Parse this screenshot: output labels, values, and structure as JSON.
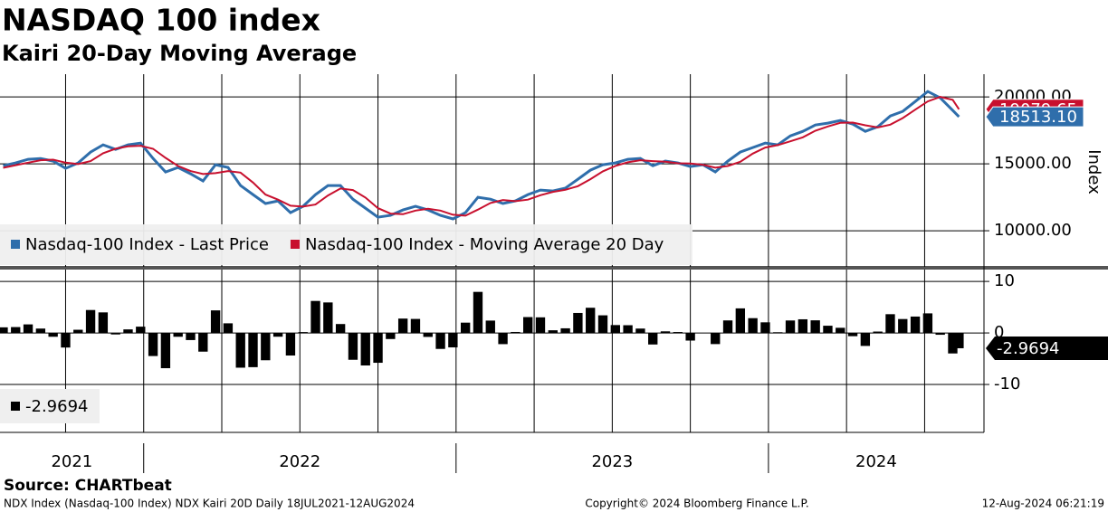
{
  "header": {
    "title": "NASDAQ 100 index",
    "subtitle": "Kairi 20-Day Moving Average"
  },
  "chart_data": [
    {
      "type": "line",
      "x": [
        2021.55,
        2021.59,
        2021.63,
        2021.67,
        2021.71,
        2021.75,
        2021.79,
        2021.83,
        2021.87,
        2021.91,
        2021.95,
        2021.99,
        2022.03,
        2022.07,
        2022.11,
        2022.15,
        2022.19,
        2022.23,
        2022.27,
        2022.31,
        2022.35,
        2022.39,
        2022.43,
        2022.47,
        2022.51,
        2022.55,
        2022.59,
        2022.63,
        2022.67,
        2022.71,
        2022.75,
        2022.79,
        2022.83,
        2022.87,
        2022.91,
        2022.95,
        2022.99,
        2023.03,
        2023.07,
        2023.11,
        2023.15,
        2023.19,
        2023.23,
        2023.27,
        2023.31,
        2023.35,
        2023.39,
        2023.43,
        2023.47,
        2023.51,
        2023.55,
        2023.59,
        2023.63,
        2023.67,
        2023.71,
        2023.75,
        2023.79,
        2023.83,
        2023.87,
        2023.91,
        2023.95,
        2023.99,
        2024.03,
        2024.07,
        2024.11,
        2024.15,
        2024.19,
        2024.23,
        2024.27,
        2024.31,
        2024.35,
        2024.39,
        2024.43,
        2024.47,
        2024.51,
        2024.55,
        2024.59,
        2024.61
      ],
      "series": [
        {
          "name": "Nasdaq-100 Index - Last Price",
          "color": "#2f6eab",
          "last_label": "18513.10",
          "values": [
            14860,
            15070,
            15340,
            15400,
            15200,
            14660,
            15070,
            15880,
            16420,
            16080,
            16420,
            16550,
            15400,
            14390,
            14730,
            14260,
            13720,
            14930,
            14730,
            13380,
            12700,
            12030,
            12230,
            11350,
            11820,
            12700,
            13380,
            13380,
            12360,
            11690,
            11010,
            11150,
            11550,
            11820,
            11550,
            11150,
            10880,
            11350,
            12500,
            12360,
            12030,
            12230,
            12700,
            13040,
            12970,
            13180,
            13850,
            14530,
            14930,
            15070,
            15340,
            15400,
            14860,
            15200,
            15070,
            14800,
            14930,
            14390,
            15200,
            15880,
            16220,
            16550,
            16420,
            17090,
            17430,
            17900,
            18040,
            18240,
            17970,
            17430,
            17770,
            18580,
            18920,
            19660,
            20410,
            19930,
            18990,
            18513.1
          ]
        },
        {
          "name": "Nasdaq-100 Index - Moving Average 20 Day",
          "color": "#c8102e",
          "last_label": "19079.65",
          "values": [
            14700,
            14900,
            15090,
            15270,
            15313,
            15087,
            14977,
            15203,
            15790,
            16127,
            16307,
            16350,
            16123,
            15447,
            14840,
            14460,
            14237,
            14303,
            14460,
            14347,
            13603,
            12703,
            12320,
            11870,
            11800,
            11957,
            12633,
            13153,
            13040,
            12477,
            11687,
            11283,
            11237,
            11507,
            11640,
            11507,
            11193,
            11127,
            11577,
            12070,
            12297,
            12207,
            12320,
            12657,
            12903,
            13063,
            13333,
            13853,
            14437,
            14843,
            15113,
            15270,
            15200,
            15153,
            15043,
            15023,
            14933,
            14707,
            14840,
            15157,
            15767,
            16217,
            16397,
            16687,
            16980,
            17473,
            17790,
            18060,
            18083,
            17880,
            17723,
            17927,
            18423,
            19053,
            19663,
            20000,
            19777,
            19079.65
          ]
        }
      ],
      "xlim": [
        2021.54,
        2024.69
      ],
      "xgrid": [
        2021.75,
        2022,
        2022.25,
        2022.5,
        2022.75,
        2023,
        2023.25,
        2023.5,
        2023.75,
        2024,
        2024.25,
        2024.5
      ],
      "ylim": [
        7300,
        21700
      ],
      "yticks": [
        {
          "value": 10000,
          "label": "10000.00"
        },
        {
          "value": 15000,
          "label": "15000.00"
        },
        {
          "value": 20000,
          "label": "20000.00"
        }
      ],
      "ylabel": "Index",
      "grid": true
    },
    {
      "type": "bar",
      "color": "#000000",
      "x": [
        2021.55,
        2021.59,
        2021.63,
        2021.67,
        2021.71,
        2021.75,
        2021.79,
        2021.83,
        2021.87,
        2021.91,
        2021.95,
        2021.99,
        2022.03,
        2022.07,
        2022.11,
        2022.15,
        2022.19,
        2022.23,
        2022.27,
        2022.31,
        2022.35,
        2022.39,
        2022.43,
        2022.47,
        2022.51,
        2022.55,
        2022.59,
        2022.63,
        2022.67,
        2022.71,
        2022.75,
        2022.79,
        2022.83,
        2022.87,
        2022.91,
        2022.95,
        2022.99,
        2023.03,
        2023.07,
        2023.11,
        2023.15,
        2023.19,
        2023.23,
        2023.27,
        2023.31,
        2023.35,
        2023.39,
        2023.43,
        2023.47,
        2023.51,
        2023.55,
        2023.59,
        2023.63,
        2023.67,
        2023.71,
        2023.75,
        2023.79,
        2023.83,
        2023.87,
        2023.91,
        2023.95,
        2023.99,
        2024.03,
        2024.07,
        2024.11,
        2024.15,
        2024.19,
        2024.23,
        2024.27,
        2024.31,
        2024.35,
        2024.39,
        2024.43,
        2024.47,
        2024.51,
        2024.55,
        2024.59,
        2024.61
      ],
      "values": [
        1.09,
        1.14,
        1.66,
        0.85,
        -0.74,
        -2.83,
        0.62,
        4.45,
        3.99,
        -0.29,
        0.69,
        1.22,
        -4.48,
        -6.84,
        -0.74,
        -1.38,
        -3.63,
        4.38,
        1.87,
        -6.74,
        -6.64,
        -5.3,
        -0.73,
        -4.38,
        0.17,
        6.21,
        5.92,
        1.73,
        -5.21,
        -6.31,
        -5.79,
        -1.18,
        2.79,
        2.72,
        -0.77,
        -3.1,
        -2.8,
        2,
        7.97,
        2.4,
        -2.17,
        0.19,
        3.08,
        3.03,
        0.52,
        0.9,
        3.88,
        4.89,
        3.42,
        1.53,
        1.5,
        0.85,
        -2.24,
        0.31,
        0.18,
        -1.48,
        -0.02,
        -2.16,
        2.43,
        4.77,
        2.87,
        2.06,
        0.14,
        2.42,
        2.65,
        2.45,
        1.4,
        1,
        -0.63,
        -2.52,
        0.27,
        3.64,
        2.7,
        3.18,
        3.8,
        -0.35,
        -3.98,
        -2.9694
      ],
      "last_value": -2.9694,
      "xlim": [
        2021.54,
        2024.69
      ],
      "xgrid": [
        2021.75,
        2022,
        2022.25,
        2022.5,
        2022.75,
        2023,
        2023.25,
        2023.5,
        2023.75,
        2024,
        2024.25,
        2024.5
      ],
      "xticks": [
        2022,
        2023,
        2024
      ],
      "year_labels": [
        "2021",
        "2022",
        "2023",
        "2024"
      ],
      "ylim": [
        -19.3,
        12.3
      ],
      "yticks": [
        -10,
        0,
        10
      ],
      "grid": true
    }
  ],
  "footer": {
    "source": "Source: CHARTbeat",
    "description": "NDX Index (Nasdaq-100 Index) NDX Kairi 20D  Daily 18JUL2021-12AUG2024",
    "copyright": "Copyright© 2024 Bloomberg Finance L.P.",
    "timestamp": "12-Aug-2024 06:21:19"
  }
}
